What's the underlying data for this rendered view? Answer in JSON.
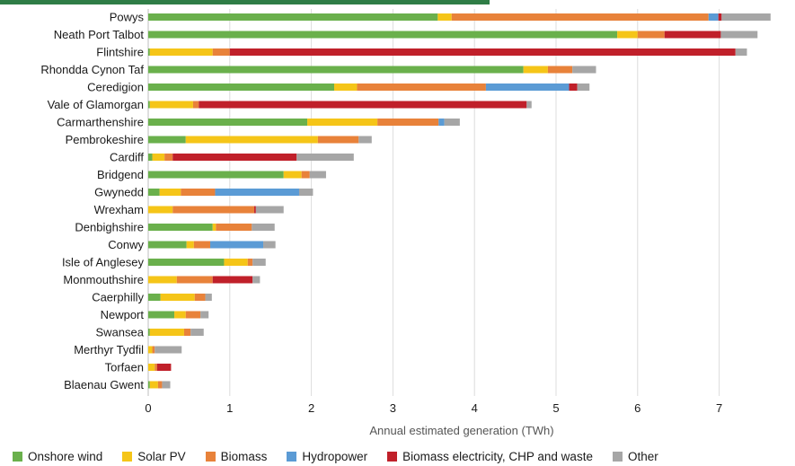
{
  "chart_data": {
    "type": "bar",
    "orientation": "horizontal",
    "stacked": true,
    "title": "",
    "xlabel": "Annual estimated generation (TWh)",
    "ylabel": "",
    "xlim": [
      0,
      7.8
    ],
    "xticks": [
      0,
      1,
      2,
      3,
      4,
      5,
      6,
      7
    ],
    "grid": "vertical",
    "legend_position": "bottom",
    "categories": [
      "Powys",
      "Neath Port Talbot",
      "Flintshire",
      "Rhondda Cynon Taf",
      "Ceredigion",
      "Vale of Glamorgan",
      "Carmarthenshire",
      "Pembrokeshire",
      "Cardiff",
      "Bridgend",
      "Gwynedd",
      "Wrexham",
      "Denbighshire",
      "Conwy",
      "Isle of Anglesey",
      "Monmouthshire",
      "Caerphilly",
      "Newport",
      "Swansea",
      "Merthyr Tydfil",
      "Torfaen",
      "Blaenau Gwent"
    ],
    "series": [
      {
        "name": "Onshore wind",
        "color": "#6ab04c",
        "values": [
          3.55,
          5.75,
          0.02,
          4.6,
          2.28,
          0.02,
          1.95,
          0.46,
          0.05,
          1.66,
          0.14,
          0.0,
          0.79,
          0.47,
          0.93,
          0.0,
          0.15,
          0.32,
          0.02,
          0.0,
          0.0,
          0.02
        ]
      },
      {
        "name": "Solar PV",
        "color": "#f5c518",
        "values": [
          0.17,
          0.25,
          0.77,
          0.3,
          0.28,
          0.53,
          0.86,
          1.62,
          0.15,
          0.22,
          0.26,
          0.3,
          0.04,
          0.09,
          0.29,
          0.35,
          0.42,
          0.14,
          0.42,
          0.05,
          0.08,
          0.1
        ]
      },
      {
        "name": "Biomass",
        "color": "#e8823a",
        "values": [
          3.15,
          0.33,
          0.21,
          0.3,
          1.58,
          0.07,
          0.75,
          0.5,
          0.1,
          0.1,
          0.42,
          1.0,
          0.44,
          0.2,
          0.06,
          0.44,
          0.13,
          0.18,
          0.08,
          0.03,
          0.03,
          0.05
        ]
      },
      {
        "name": "Hydropower",
        "color": "#5b9bd5",
        "values": [
          0.12,
          0.0,
          0.0,
          0.0,
          1.02,
          0.0,
          0.07,
          0.0,
          0.0,
          0.0,
          1.03,
          0.0,
          0.0,
          0.65,
          0.0,
          0.0,
          0.0,
          0.0,
          0.0,
          0.0,
          0.0,
          0.0
        ]
      },
      {
        "name": "Biomass electricity, CHP and waste",
        "color": "#c0202a",
        "values": [
          0.04,
          0.69,
          6.2,
          0.0,
          0.1,
          4.02,
          0.0,
          0.0,
          1.52,
          0.0,
          0.0,
          0.02,
          0.0,
          0.0,
          0.0,
          0.49,
          0.0,
          0.0,
          0.0,
          0.0,
          0.17,
          0.0
        ]
      },
      {
        "name": "Other",
        "color": "#a6a6a6",
        "values": [
          0.6,
          0.45,
          0.14,
          0.29,
          0.15,
          0.06,
          0.19,
          0.16,
          0.7,
          0.2,
          0.17,
          0.34,
          0.28,
          0.15,
          0.16,
          0.09,
          0.08,
          0.1,
          0.16,
          0.33,
          0.0,
          0.1
        ]
      }
    ]
  }
}
